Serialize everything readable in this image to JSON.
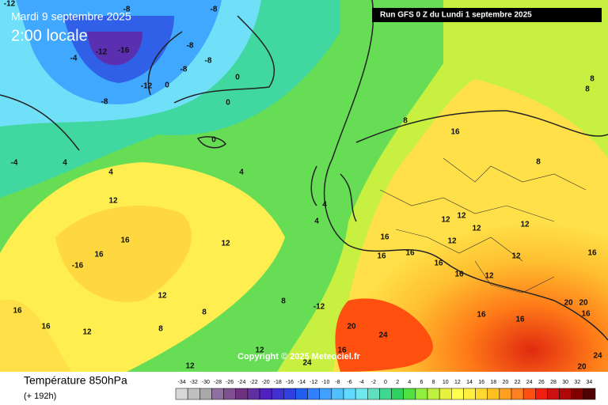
{
  "header": {
    "date": "Mardi 9 septembre 2025",
    "time": "2:00 locale",
    "run": "Run GFS 0 Z du Lundi 1 septembre 2025"
  },
  "footer": {
    "title": "Température 850hPa",
    "lead": "(+ 192h)",
    "copyright": "Copyright © 2025 Meteociel.fr"
  },
  "map": {
    "labels": [
      -12,
      -8,
      -8,
      -12,
      -16,
      -4,
      -8,
      -8,
      -8,
      -12,
      0,
      -8,
      0,
      0,
      0,
      -4,
      4,
      4,
      4,
      12,
      16,
      16,
      -16,
      12,
      8,
      16,
      8,
      12,
      12,
      12,
      12,
      16,
      16,
      16,
      12,
      16,
      16,
      12,
      12,
      16,
      12,
      12,
      8,
      8,
      8,
      -12,
      16,
      16,
      16,
      16,
      20,
      20,
      16,
      20,
      24,
      24,
      16,
      20,
      24,
      12,
      12,
      8,
      8,
      4,
      4
    ]
  },
  "legend": {
    "values": [
      -34,
      -32,
      -30,
      -28,
      -26,
      -24,
      -22,
      -20,
      -18,
      -16,
      -14,
      -12,
      -10,
      -8,
      -6,
      -4,
      -2,
      0,
      2,
      4,
      6,
      8,
      10,
      12,
      14,
      16,
      18,
      20,
      22,
      24,
      26,
      28,
      30,
      32,
      34
    ],
    "colors": [
      "#d8d8d8",
      "#c0c0c0",
      "#a8a8a8",
      "#9070a0",
      "#805090",
      "#703080",
      "#6030a0",
      "#5020c0",
      "#4030d0",
      "#3040e0",
      "#2060f0",
      "#3080ff",
      "#40a0ff",
      "#50c0ff",
      "#60d8ff",
      "#70e8f0",
      "#60e0c0",
      "#40d890",
      "#30d060",
      "#50e040",
      "#90f040",
      "#c0f040",
      "#e8f040",
      "#ffff50",
      "#fff040",
      "#ffd830",
      "#ffc020",
      "#ffa020",
      "#ff8020",
      "#ff5010",
      "#f02010",
      "#d01010",
      "#b00808",
      "#800000",
      "#500000"
    ]
  }
}
